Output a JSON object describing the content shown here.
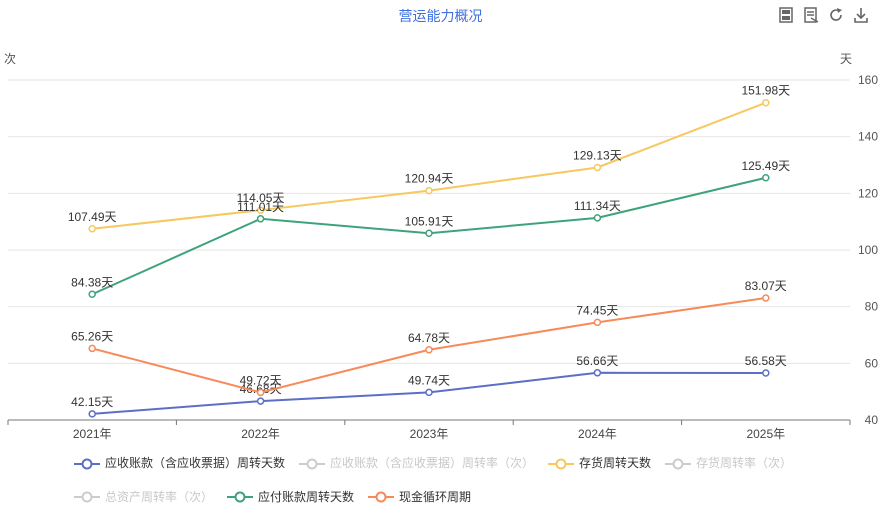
{
  "toolbar": {
    "icons": [
      "save-image-icon",
      "data-view-icon",
      "restore-icon",
      "download-icon"
    ]
  },
  "chart_data": {
    "type": "line",
    "title": "营运能力概况",
    "y_left_unit": "次",
    "y_right_unit": "天",
    "categories": [
      "2021年",
      "2022年",
      "2023年",
      "2024年",
      "2025年"
    ],
    "y_right_range": [
      40,
      160
    ],
    "y_right_ticks": [
      "40",
      "60",
      "80",
      "100",
      "120",
      "140",
      "160"
    ],
    "grid": true,
    "legend_position": "bottom",
    "series": [
      {
        "name": "应收账款（含应收票据）周转天数",
        "color": "#5b6fc7",
        "visible": true,
        "values": [
          42.15,
          46.68,
          49.74,
          56.66,
          56.58
        ],
        "labels": [
          "42.15天",
          "46.68天",
          "49.74天",
          "56.66天",
          "56.58天"
        ]
      },
      {
        "name": "应收账款（含应收票据）周转率（次）",
        "color": "#cccccc",
        "visible": false
      },
      {
        "name": "存货周转天数",
        "color": "#f6c85f",
        "visible": true,
        "values": [
          107.49,
          114.05,
          120.94,
          129.13,
          151.98
        ],
        "labels": [
          "107.49天",
          "114.05天",
          "120.94天",
          "129.13天",
          "151.98天"
        ]
      },
      {
        "name": "存货周转率（次）",
        "color": "#cccccc",
        "visible": false
      },
      {
        "name": "总资产周转率（次）",
        "color": "#cccccc",
        "visible": false
      },
      {
        "name": "应付账款周转天数",
        "color": "#3ea37a",
        "visible": true,
        "values": [
          84.38,
          111.01,
          105.91,
          111.34,
          125.49
        ],
        "labels": [
          "84.38天",
          "111.01天",
          "105.91天",
          "111.34天",
          "125.49天"
        ]
      },
      {
        "name": "现金循环周期",
        "color": "#f78a58",
        "visible": true,
        "values": [
          65.26,
          49.72,
          64.78,
          74.45,
          83.07
        ],
        "labels": [
          "65.26天",
          "49.72天",
          "64.78天",
          "74.45天",
          "83.07天"
        ]
      }
    ]
  }
}
